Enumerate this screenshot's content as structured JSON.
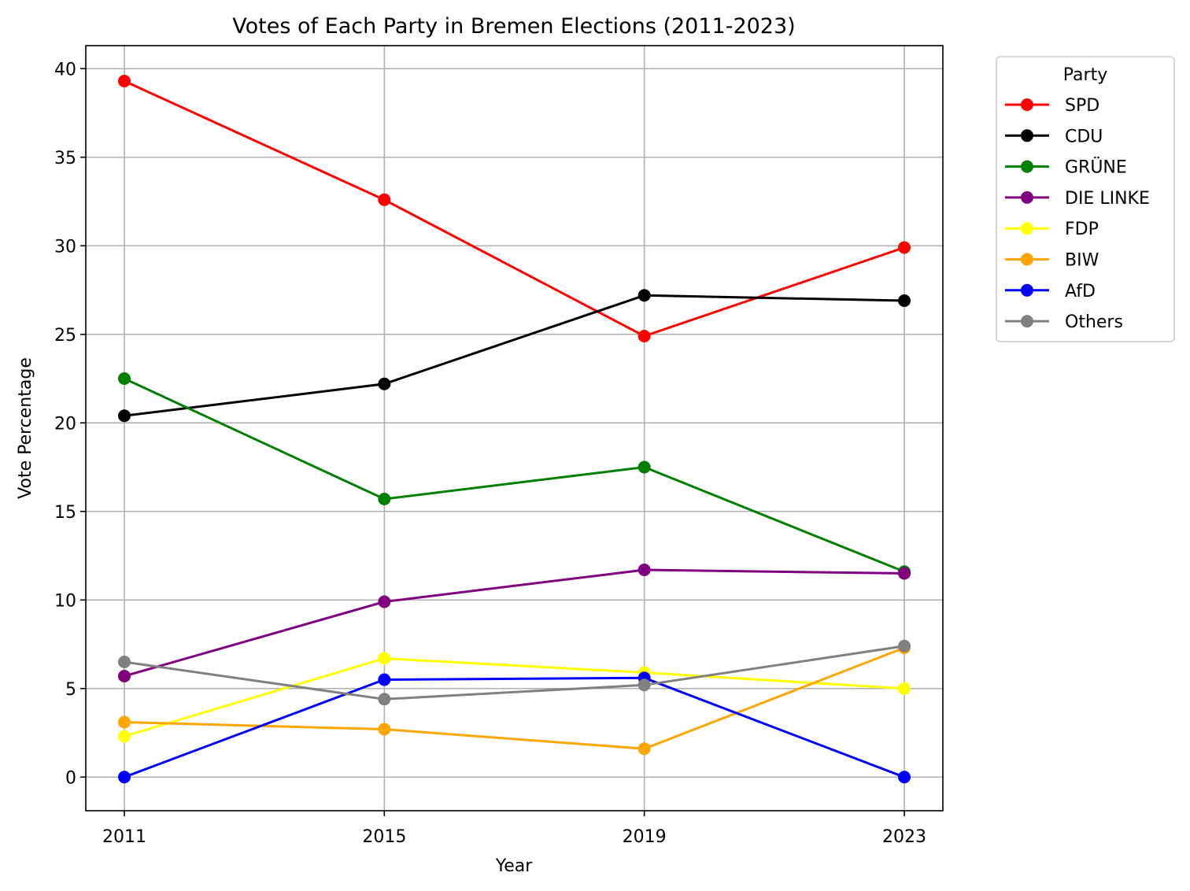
{
  "chart_data": {
    "type": "line",
    "title": "Votes of Each Party in Bremen Elections (2011-2023)",
    "xlabel": "Year",
    "ylabel": "Vote Percentage",
    "x": [
      "2011",
      "2015",
      "2019",
      "2023"
    ],
    "ylim": [
      -1.9,
      41.3
    ],
    "yticks": [
      0,
      5,
      10,
      15,
      20,
      25,
      30,
      35,
      40
    ],
    "grid": true,
    "legend_title": "Party",
    "legend_position": "outside-top-right",
    "series": [
      {
        "name": "SPD",
        "color": "#ff0000",
        "values": [
          39.3,
          32.6,
          24.9,
          29.9
        ]
      },
      {
        "name": "CDU",
        "color": "#000000",
        "values": [
          20.4,
          22.2,
          27.2,
          26.9
        ]
      },
      {
        "name": "GRÜNE",
        "color": "#008000",
        "values": [
          22.5,
          15.7,
          17.5,
          11.6
        ]
      },
      {
        "name": "DIE LINKE",
        "color": "#800080",
        "values": [
          5.7,
          9.9,
          11.7,
          11.5
        ]
      },
      {
        "name": "FDP",
        "color": "#ffff00",
        "values": [
          2.3,
          6.7,
          5.9,
          5.0
        ]
      },
      {
        "name": "BIW",
        "color": "#ffa500",
        "values": [
          3.1,
          2.7,
          1.6,
          7.3
        ]
      },
      {
        "name": "AfD",
        "color": "#0000ff",
        "values": [
          0.0,
          5.5,
          5.6,
          0.0
        ]
      },
      {
        "name": "Others",
        "color": "#808080",
        "values": [
          6.5,
          4.4,
          5.2,
          7.4
        ]
      }
    ]
  }
}
